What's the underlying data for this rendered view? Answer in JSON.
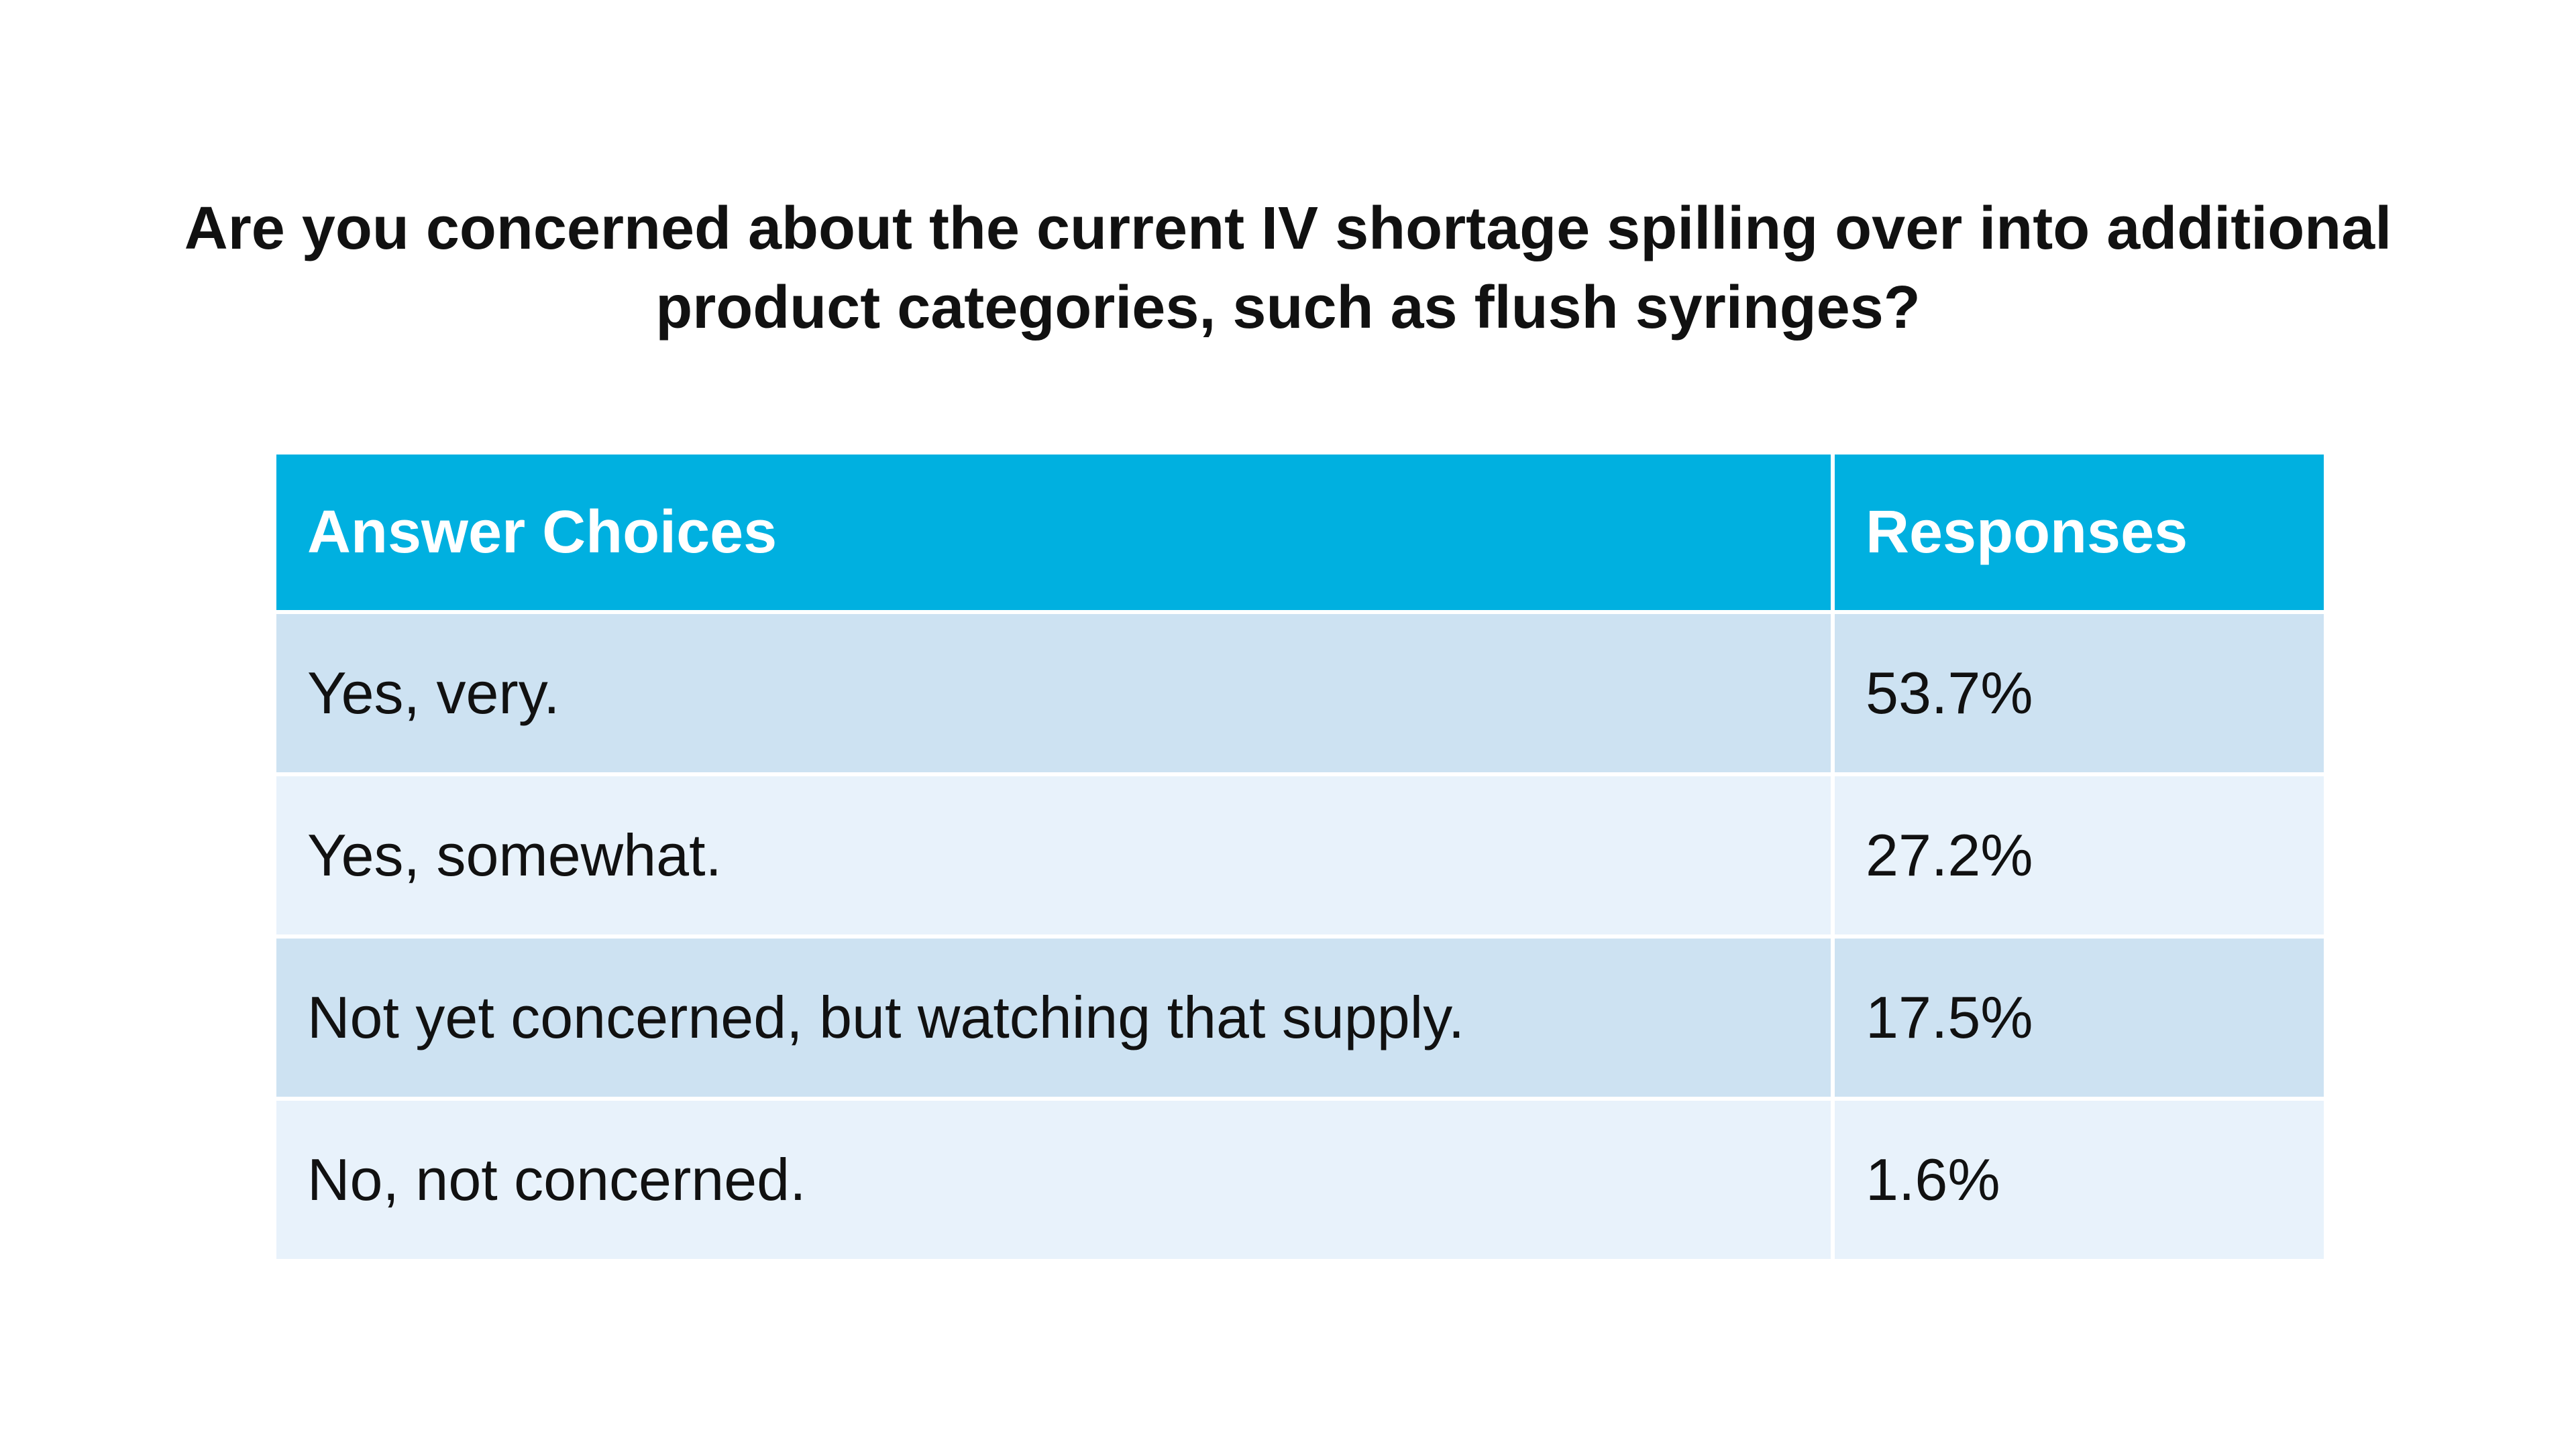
{
  "chart_data": {
    "type": "table",
    "title": "Are you concerned about the current IV shortage spilling over into additional product categories, such as flush syringes?",
    "title_lines": [
      "Are you concerned about the current IV shortage spilling over into additional",
      "product categories, such as flush syringes?"
    ],
    "columns": [
      "Answer Choices",
      "Responses"
    ],
    "rows": [
      {
        "choice": "Yes, very.",
        "response": "53.7%",
        "value": 53.7
      },
      {
        "choice": "Yes, somewhat.",
        "response": "27.2%",
        "value": 27.2
      },
      {
        "choice": "Not yet concerned, but watching that supply.",
        "response": "17.5%",
        "value": 17.5
      },
      {
        "choice": "No, not concerned.",
        "response": "1.6%",
        "value": 1.6
      }
    ]
  },
  "colors": {
    "header_bg": "#00b0e0",
    "header_text": "#ffffff",
    "row_odd_bg": "#cde2f2",
    "row_even_bg": "#e8f2fb"
  }
}
